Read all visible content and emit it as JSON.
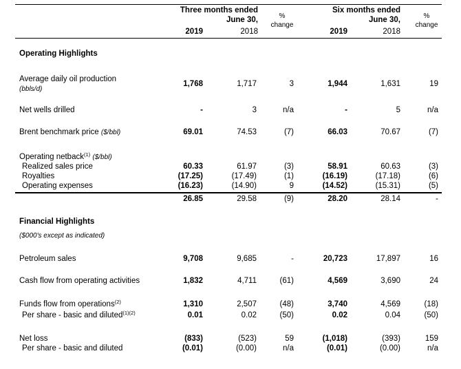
{
  "header": {
    "three_months_line1": "Three months ended",
    "three_months_line2": "June 30,",
    "six_months_line1": "Six months ended",
    "six_months_line2": "June 30,",
    "pct_line1": "%",
    "pct_line2": "change",
    "year_2019": "2019",
    "year_2018": "2018"
  },
  "sections": {
    "operating": "Operating Highlights",
    "financial": "Financial Highlights",
    "financial_note": "($000's except as indicated)"
  },
  "labels": {
    "avg_oil_1": "Average daily oil production",
    "avg_oil_2": "(bbls/d)",
    "net_wells": "Net wells drilled",
    "brent": "Brent benchmark price",
    "brent_unit": "($/bbl)",
    "netback": "Operating netback",
    "netback_sup": "(1)",
    "netback_unit": "($/bbl)",
    "realized": "Realized sales price",
    "royalties": "Royalties",
    "opex": "Operating expenses",
    "petroleum_sales": "Petroleum sales",
    "cash_flow": "Cash flow from operating activities",
    "funds_flow": "Funds flow from operations",
    "funds_flow_sup": "(2)",
    "per_share_funds": "Per share - basic and diluted",
    "per_share_funds_sup": "(1)(2)",
    "net_loss": "Net loss",
    "per_share_loss": "Per share - basic and diluted"
  },
  "rows": {
    "avg_oil": {
      "q19": "1,768",
      "q18": "1,717",
      "qch": "3",
      "y19": "1,944",
      "y18": "1,631",
      "ych": "19"
    },
    "net_wells": {
      "q19": "-",
      "q18": "3",
      "qch": "n/a",
      "y19": "-",
      "y18": "5",
      "ych": "n/a"
    },
    "brent": {
      "q19": "69.01",
      "q18": "74.53",
      "qch": "(7)",
      "y19": "66.03",
      "y18": "70.67",
      "ych": "(7)"
    },
    "realized": {
      "q19": "60.33",
      "q18": "61.97",
      "qch": "(3)",
      "y19": "58.91",
      "y18": "60.63",
      "ych": "(3)"
    },
    "royalties": {
      "q19": "(17.25)",
      "q18": "(17.49)",
      "qch": "(1)",
      "y19": "(16.19)",
      "y18": "(17.18)",
      "ych": "(6)"
    },
    "opex": {
      "q19": "(16.23)",
      "q18": "(14.90)",
      "qch": "9",
      "y19": "(14.52)",
      "y18": "(15.31)",
      "ych": "(5)"
    },
    "netback_total": {
      "q19": "26.85",
      "q18": "29.58",
      "qch": "(9)",
      "y19": "28.20",
      "y18": "28.14",
      "ych": "-"
    },
    "petroleum_sales": {
      "q19": "9,708",
      "q18": "9,685",
      "qch": "-",
      "y19": "20,723",
      "y18": "17,897",
      "ych": "16"
    },
    "cash_flow": {
      "q19": "1,832",
      "q18": "4,711",
      "qch": "(61)",
      "y19": "4,569",
      "y18": "3,690",
      "ych": "24"
    },
    "funds_flow": {
      "q19": "1,310",
      "q18": "2,507",
      "qch": "(48)",
      "y19": "3,740",
      "y18": "4,569",
      "ych": "(18)"
    },
    "per_share_funds": {
      "q19": "0.01",
      "q18": "0.02",
      "qch": "(50)",
      "y19": "0.02",
      "y18": "0.04",
      "ych": "(50)"
    },
    "net_loss": {
      "q19": "(833)",
      "q18": "(523)",
      "qch": "59",
      "y19": "(1,018)",
      "y18": "(393)",
      "ych": "159"
    },
    "per_share_loss": {
      "q19": "(0.01)",
      "q18": "(0.00)",
      "qch": "n/a",
      "y19": "(0.01)",
      "y18": "(0.00)",
      "ych": "n/a"
    }
  }
}
